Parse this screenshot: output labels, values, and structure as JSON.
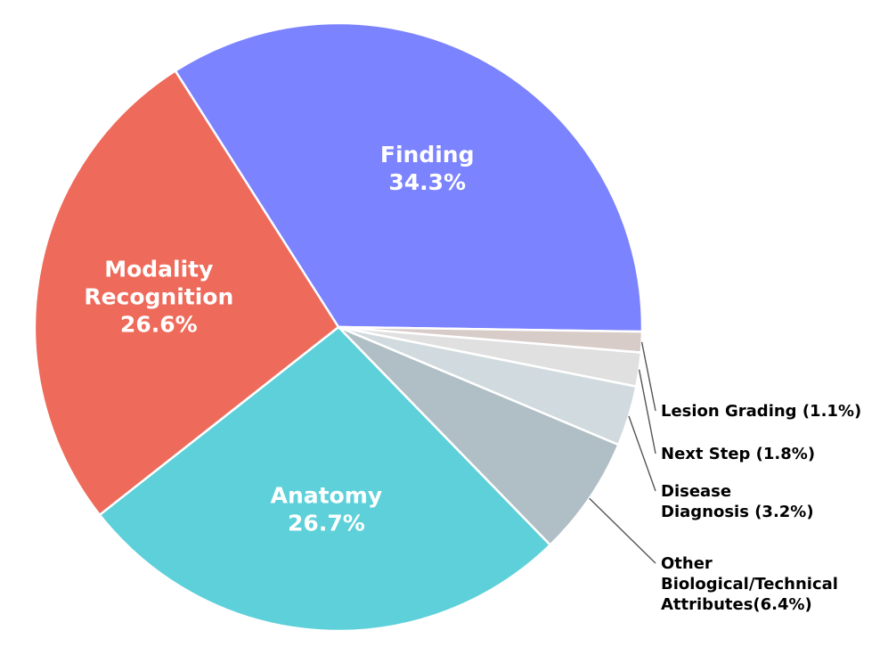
{
  "chart_data": {
    "type": "pie",
    "title": "",
    "slices": [
      {
        "name": "Finding",
        "value": 34.3,
        "color": "#7b83ff",
        "label_lines": [
          "Finding",
          "34.3%"
        ],
        "label_placement": "inside"
      },
      {
        "name": "Lesion Grading",
        "value": 1.1,
        "color": "#d8ccc8",
        "label_lines": [
          "Lesion Grading (1.1%)"
        ],
        "label_placement": "outside"
      },
      {
        "name": "Next Step",
        "value": 1.8,
        "color": "#e0e0e0",
        "label_lines": [
          "Next Step (1.8%)"
        ],
        "label_placement": "outside"
      },
      {
        "name": "Disease Diagnosis",
        "value": 3.2,
        "color": "#d1dade",
        "label_lines": [
          "Disease",
          "Diagnosis (3.2%)"
        ],
        "label_placement": "outside"
      },
      {
        "name": "Other Biological/Technical Attributes",
        "value": 6.4,
        "color": "#b0bec5",
        "label_lines": [
          "Other",
          "Biological/Technical",
          "Attributes(6.4%)"
        ],
        "label_placement": "outside"
      },
      {
        "name": "Anatomy",
        "value": 26.7,
        "color": "#5dd0d9",
        "label_lines": [
          "Anatomy",
          "26.7%"
        ],
        "label_placement": "inside"
      },
      {
        "name": "Modality Recognition",
        "value": 26.6,
        "color": "#ee6a5a",
        "label_lines": [
          "Modality",
          "Recognition",
          "26.6%"
        ],
        "label_placement": "inside"
      }
    ],
    "direction": "clockwise",
    "start_angle_degrees": 122.5,
    "legend": "none"
  }
}
